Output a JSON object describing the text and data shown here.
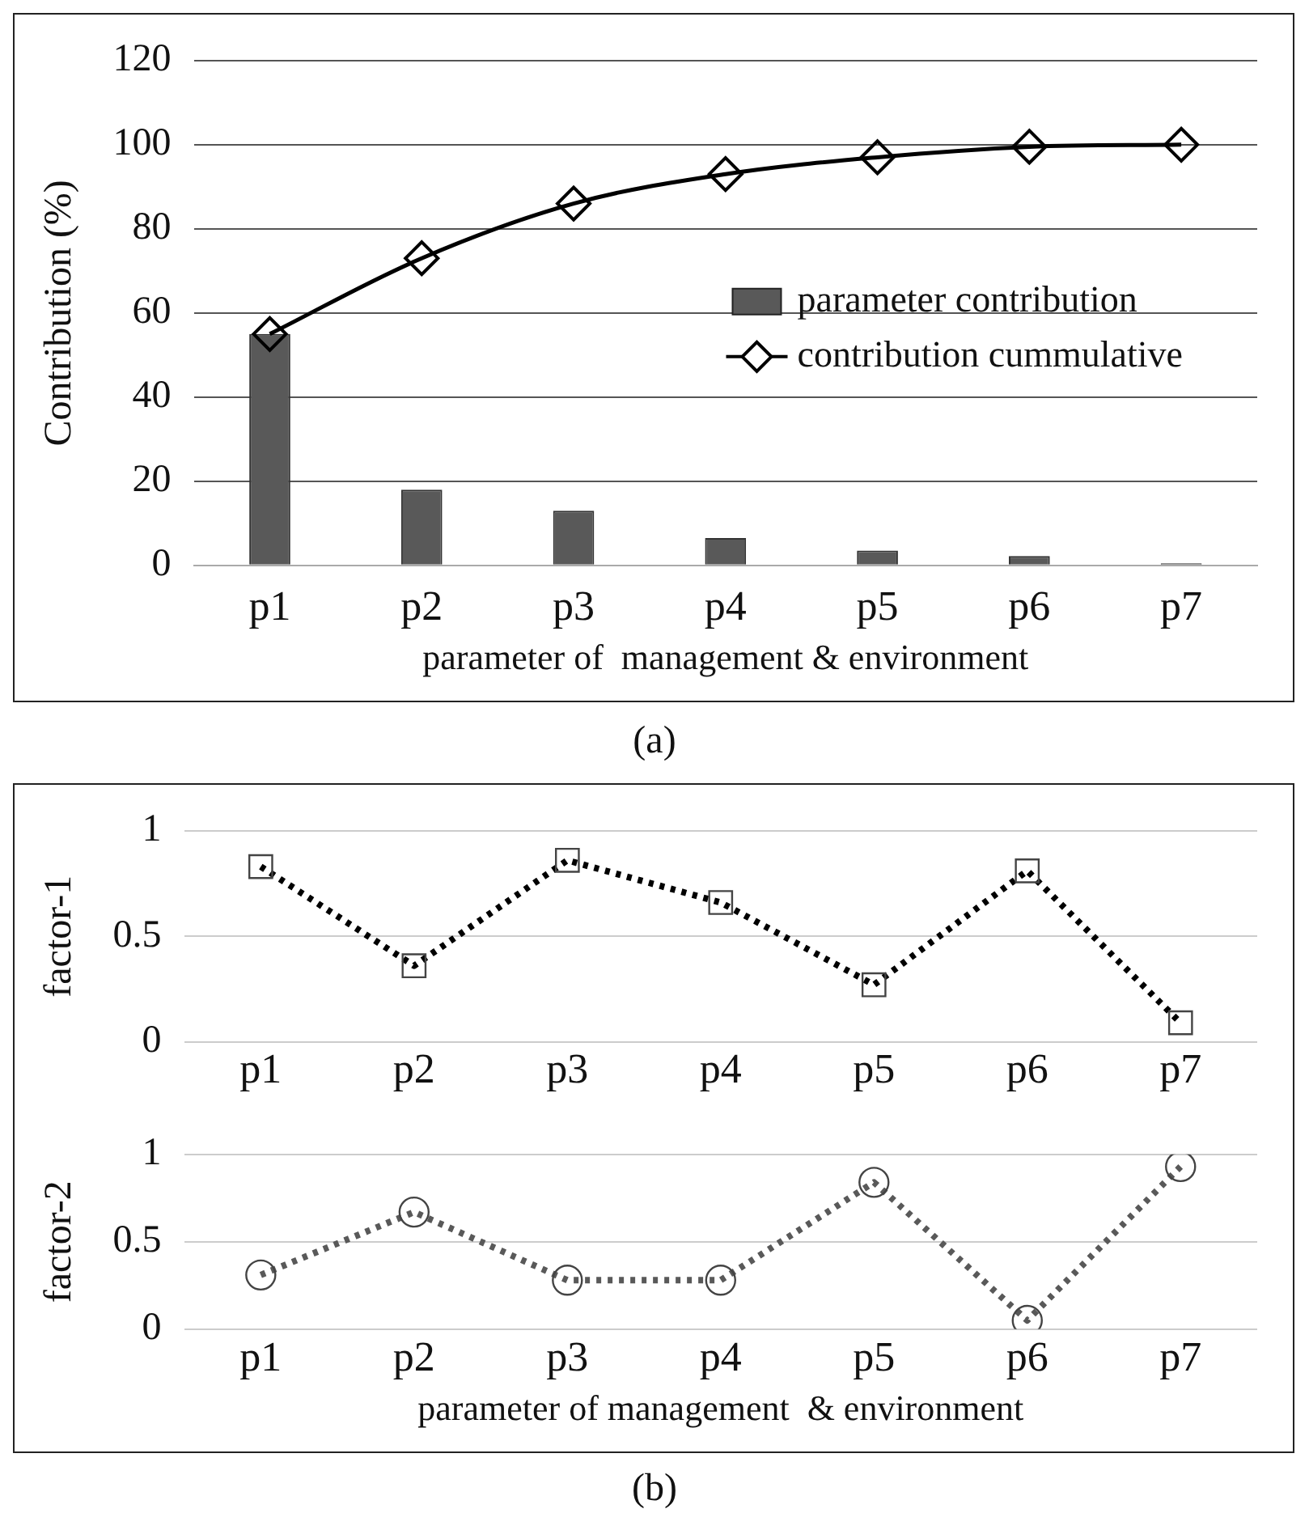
{
  "chart_data": [
    {
      "type": "bar",
      "categories": [
        "p1",
        "p2",
        "p3",
        "p4",
        "p5",
        "p6",
        "p7"
      ],
      "xlabel": "parameter of  management & environment",
      "ylabel": "Contribution (%)",
      "ylim": [
        0,
        120
      ],
      "yticks": [
        0,
        20,
        40,
        60,
        80,
        100,
        120
      ],
      "grid": "y",
      "legend": "center right",
      "annotations": [
        "(a)"
      ],
      "series": [
        {
          "name": "parameter contribution",
          "color": "#595959",
          "values": [
            55,
            18,
            13,
            6.5,
            3.5,
            2.2,
            0.5
          ]
        },
        {
          "name": "contribution cummulative",
          "type": "line",
          "color": "#000000",
          "marker": "diamond",
          "line_style": "solid",
          "values": [
            55,
            73,
            86,
            93,
            97,
            99.5,
            100
          ]
        }
      ]
    },
    {
      "type": "line",
      "categories": [
        "p1",
        "p2",
        "p3",
        "p4",
        "p5",
        "p6",
        "p7"
      ],
      "ylabel": "factor-1",
      "ylim": [
        0,
        1
      ],
      "yticks": [
        0,
        0.5,
        1
      ],
      "grid": "y",
      "marker": "square",
      "line_style": "dotted",
      "series": [
        {
          "color": "#000000",
          "values": [
            0.83,
            0.36,
            0.86,
            0.66,
            0.27,
            0.81,
            0.09
          ]
        }
      ]
    },
    {
      "type": "line",
      "categories": [
        "p1",
        "p2",
        "p3",
        "p4",
        "p5",
        "p6",
        "p7"
      ],
      "xlabel": "parameter of management  & environment",
      "ylabel": "factor-2",
      "ylim": [
        0,
        1
      ],
      "yticks": [
        0,
        0.5,
        1
      ],
      "grid": "y",
      "marker": "circle",
      "line_style": "dotted",
      "annotations": [
        "(b)"
      ],
      "series": [
        {
          "color": "#595959",
          "values": [
            0.31,
            0.67,
            0.28,
            0.28,
            0.84,
            0.05,
            0.93
          ]
        }
      ]
    }
  ]
}
